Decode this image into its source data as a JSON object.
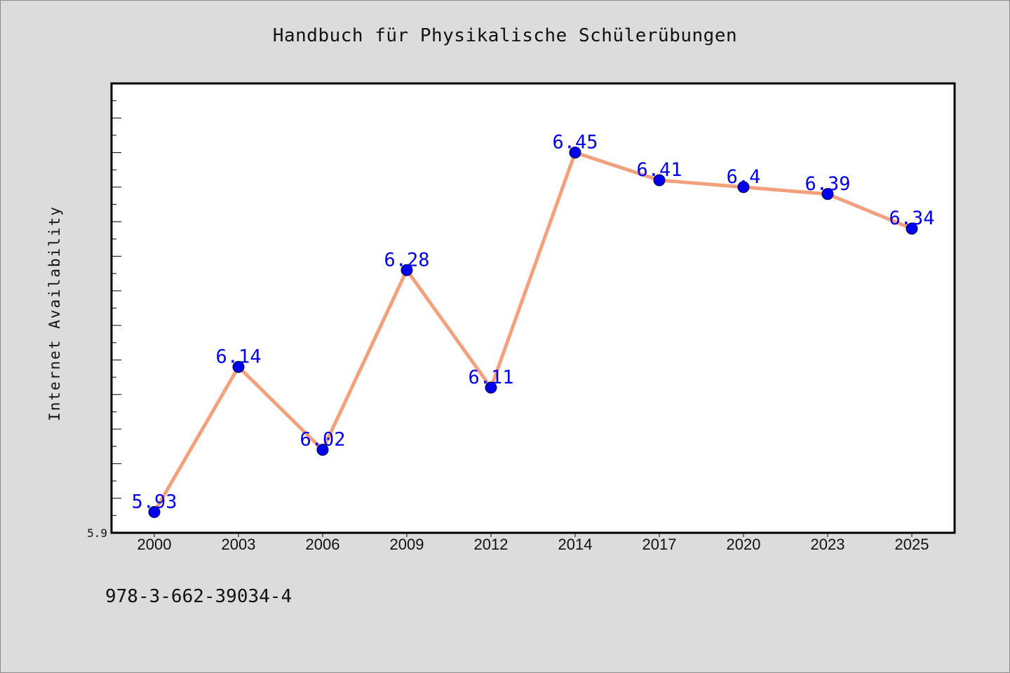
{
  "chart_data": {
    "type": "line",
    "title": "Handbuch für Physikalische Schülerübungen",
    "xlabel": "",
    "ylabel": "Internet Availability",
    "categories": [
      "2000",
      "2003",
      "2006",
      "2009",
      "2012",
      "2014",
      "2017",
      "2020",
      "2023",
      "2025"
    ],
    "series": [
      {
        "values": [
          5.93,
          6.14,
          6.02,
          6.28,
          6.11,
          6.45,
          6.41,
          6.4,
          6.39,
          6.34
        ]
      }
    ],
    "data_labels": [
      "5.93",
      "6.14",
      "6.02",
      "6.28",
      "6.11",
      "6.45",
      "6.41",
      "6.4",
      "6.39",
      "6.34"
    ],
    "ylim": [
      5.9,
      6.55
    ],
    "y_tick_labels": [
      "5.9"
    ],
    "grid": false,
    "line_color": "#f4a07c",
    "marker_color": "#0000ee",
    "label_color": "#0000ee"
  },
  "footer": {
    "isbn": "978-3-662-39034-4"
  }
}
